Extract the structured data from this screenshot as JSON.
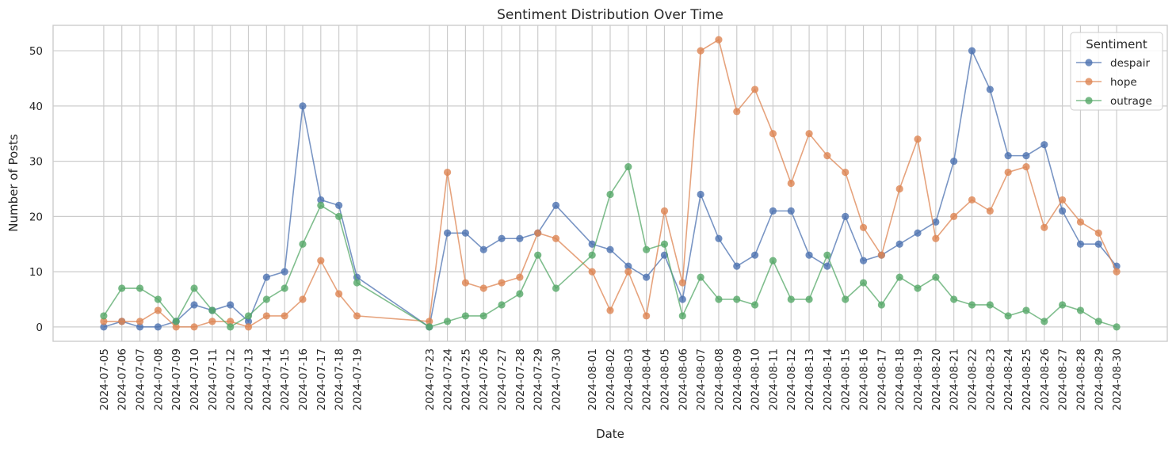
{
  "chart_data": {
    "type": "line",
    "title": "Sentiment Distribution Over Time",
    "xlabel": "Date",
    "ylabel": "Number of Posts",
    "ylim": [
      -2.6,
      54.6
    ],
    "yticks": [
      0,
      10,
      20,
      30,
      40,
      50
    ],
    "grid": true,
    "legend": {
      "title": "Sentiment",
      "placement": "top-right"
    },
    "x": [
      "2024-07-05",
      "2024-07-06",
      "2024-07-07",
      "2024-07-08",
      "2024-07-09",
      "2024-07-10",
      "2024-07-11",
      "2024-07-12",
      "2024-07-13",
      "2024-07-14",
      "2024-07-15",
      "2024-07-16",
      "2024-07-17",
      "2024-07-18",
      "2024-07-19",
      "2024-07-23",
      "2024-07-24",
      "2024-07-25",
      "2024-07-26",
      "2024-07-27",
      "2024-07-28",
      "2024-07-29",
      "2024-07-30",
      "2024-08-01",
      "2024-08-02",
      "2024-08-03",
      "2024-08-04",
      "2024-08-05",
      "2024-08-06",
      "2024-08-07",
      "2024-08-08",
      "2024-08-09",
      "2024-08-10",
      "2024-08-11",
      "2024-08-12",
      "2024-08-13",
      "2024-08-14",
      "2024-08-15",
      "2024-08-16",
      "2024-08-17",
      "2024-08-18",
      "2024-08-19",
      "2024-08-20",
      "2024-08-21",
      "2024-08-22",
      "2024-08-23",
      "2024-08-24",
      "2024-08-25",
      "2024-08-26",
      "2024-08-27",
      "2024-08-28",
      "2024-08-29",
      "2024-08-30"
    ],
    "series": [
      {
        "name": "despair",
        "color": "#4c72b0",
        "values": [
          0,
          1,
          0,
          0,
          1,
          4,
          3,
          4,
          1,
          9,
          10,
          40,
          23,
          22,
          9,
          0,
          17,
          17,
          14,
          16,
          16,
          17,
          22,
          15,
          14,
          11,
          9,
          13,
          5,
          24,
          16,
          11,
          13,
          21,
          21,
          13,
          11,
          20,
          12,
          13,
          15,
          17,
          19,
          30,
          50,
          43,
          31,
          31,
          33,
          21,
          15,
          15,
          11
        ]
      },
      {
        "name": "hope",
        "color": "#dd8452",
        "values": [
          1,
          1,
          1,
          3,
          0,
          0,
          1,
          1,
          0,
          2,
          2,
          5,
          12,
          6,
          2,
          1,
          28,
          8,
          7,
          8,
          9,
          17,
          16,
          10,
          3,
          10,
          2,
          21,
          8,
          50,
          52,
          39,
          43,
          35,
          26,
          35,
          31,
          28,
          18,
          13,
          25,
          34,
          16,
          20,
          23,
          21,
          28,
          29,
          18,
          23,
          19,
          17,
          10
        ]
      },
      {
        "name": "outrage",
        "color": "#55a868",
        "values": [
          2,
          7,
          7,
          5,
          1,
          7,
          3,
          0,
          2,
          5,
          7,
          15,
          22,
          20,
          8,
          0,
          1,
          2,
          2,
          4,
          6,
          13,
          7,
          13,
          24,
          29,
          14,
          15,
          2,
          9,
          5,
          5,
          4,
          12,
          5,
          5,
          13,
          5,
          8,
          4,
          9,
          7,
          9,
          5,
          4,
          4,
          2,
          3,
          1,
          4,
          3,
          1,
          0
        ]
      }
    ]
  }
}
